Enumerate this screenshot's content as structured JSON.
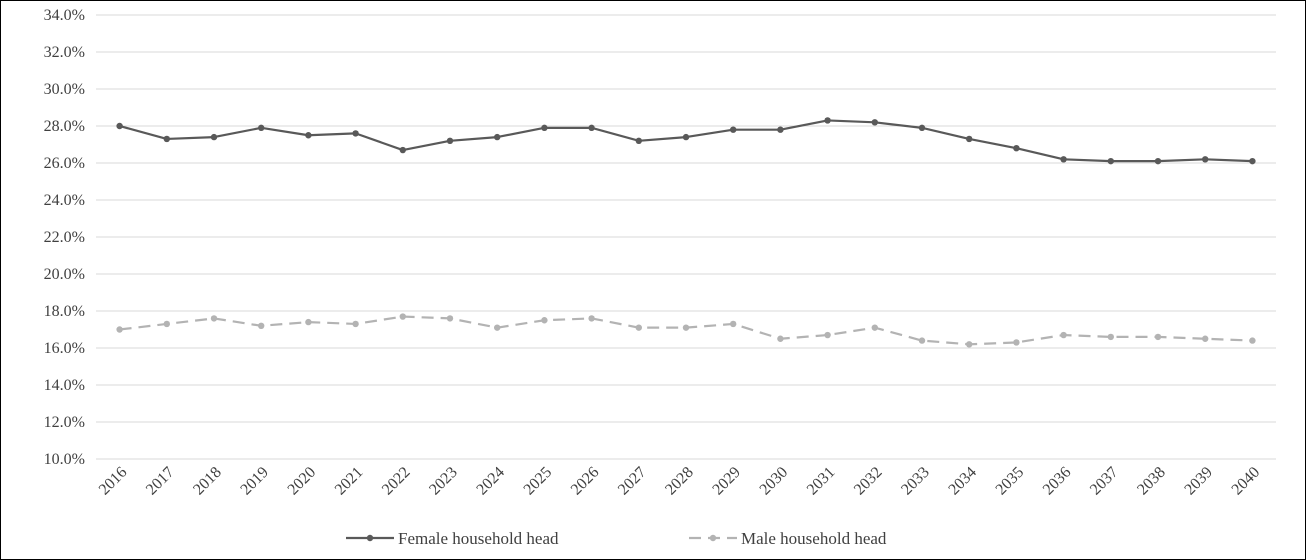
{
  "chart_data": {
    "type": "line",
    "title": "",
    "xlabel": "",
    "ylabel": "",
    "categories": [
      "2016",
      "2017",
      "2018",
      "2019",
      "2020",
      "2021",
      "2022",
      "2023",
      "2024",
      "2025",
      "2026",
      "2027",
      "2028",
      "2029",
      "2030",
      "2031",
      "2032",
      "2033",
      "2034",
      "2035",
      "2036",
      "2037",
      "2038",
      "2039",
      "2040"
    ],
    "ylim": [
      0.1,
      0.34
    ],
    "yticks": [
      0.1,
      0.12,
      0.14,
      0.16,
      0.18,
      0.2,
      0.22,
      0.24,
      0.26,
      0.28,
      0.3,
      0.32,
      0.34
    ],
    "ytick_labels": [
      "10.0%",
      "12.0%",
      "14.0%",
      "16.0%",
      "18.0%",
      "20.0%",
      "22.0%",
      "24.0%",
      "26.0%",
      "28.0%",
      "30.0%",
      "32.0%",
      "34.0%"
    ],
    "grid": true,
    "legend_position": "bottom",
    "series": [
      {
        "name": "Female household head",
        "color": "#595959",
        "style": "solid",
        "values": [
          0.28,
          0.273,
          0.274,
          0.279,
          0.275,
          0.276,
          0.267,
          0.272,
          0.274,
          0.279,
          0.279,
          0.272,
          0.274,
          0.278,
          0.278,
          0.283,
          0.282,
          0.279,
          0.273,
          0.268,
          0.262,
          0.261,
          0.261,
          0.262,
          0.261
        ]
      },
      {
        "name": "Male household head",
        "color": "#b3b3b3",
        "style": "dashed",
        "values": [
          0.17,
          0.173,
          0.176,
          0.172,
          0.174,
          0.173,
          0.177,
          0.176,
          0.171,
          0.175,
          0.176,
          0.171,
          0.171,
          0.173,
          0.165,
          0.167,
          0.171,
          0.164,
          0.162,
          0.163,
          0.167,
          0.166,
          0.166,
          0.165,
          0.164
        ]
      }
    ]
  }
}
